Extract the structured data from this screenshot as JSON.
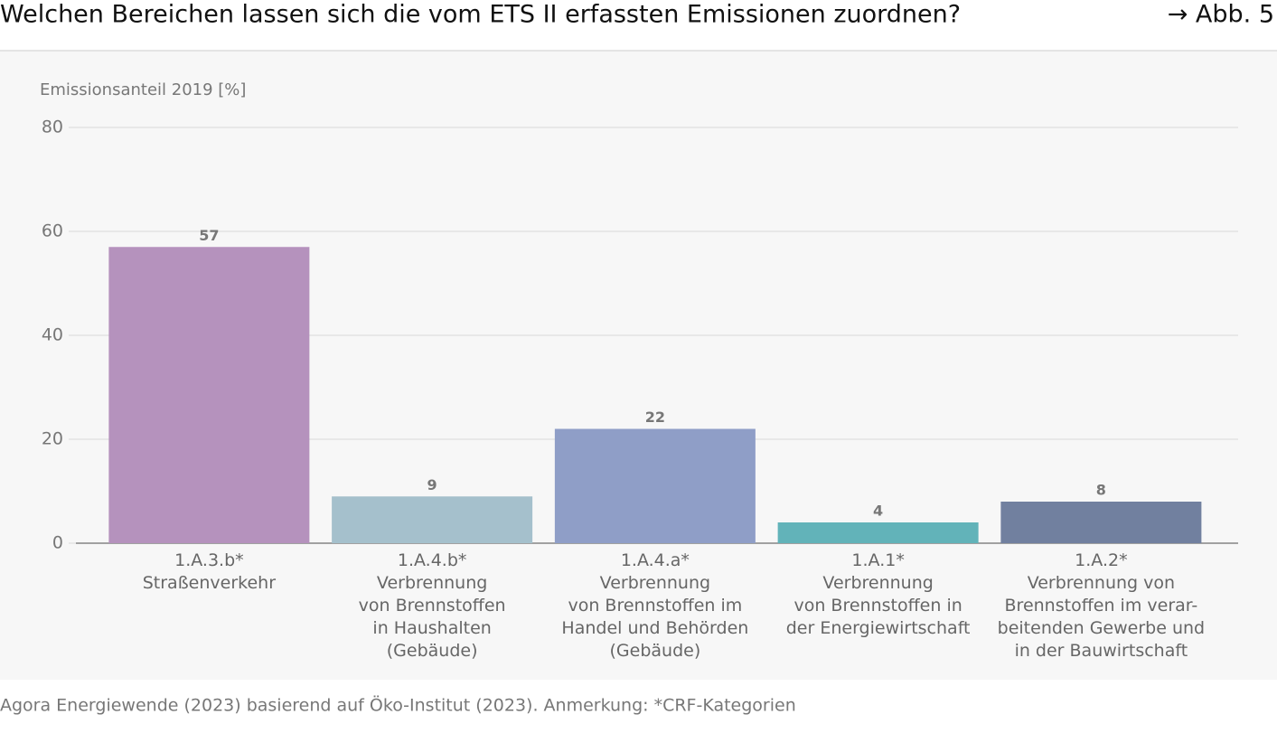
{
  "chart_data": {
    "type": "bar",
    "title": "Welchen Bereichen lassen sich die vom ETS II erfassten Emissionen zuordnen?",
    "figure_ref": "→ Abb. 5",
    "y_label": "Emissionsanteil 2019 [%]",
    "source": "Agora Energiewende (2023) basierend auf Öko-Institut (2023). Anmerkung: *CRF-Kategorien",
    "categories": [
      "1.A.3.b*\nStraßenverkehr",
      "1.A.4.b*\nVerbrennung\nvon Brennstoffen\nin Haushalten\n(Gebäude)",
      "1.A.4.a*\nVerbrennung\nvon Brennstoffen im\nHandel und Behörden\n(Gebäude)",
      "1.A.1*\nVerbrennung\nvon Brennstoffen in\nder Energiewirtschaft",
      "1.A.2*\nVerbrennung von\nBrennstoffen im verar-\nbeitenden Gewerbe und\nin der Bauwirtschaft"
    ],
    "values": [
      57,
      9,
      22,
      4,
      8
    ],
    "colors": [
      "#b592bd",
      "#a5c0cc",
      "#8f9ec7",
      "#62b3b9",
      "#71809f"
    ],
    "ylim": [
      0,
      80
    ],
    "yticks": [
      0,
      20,
      40,
      60,
      80
    ],
    "grid": true
  }
}
